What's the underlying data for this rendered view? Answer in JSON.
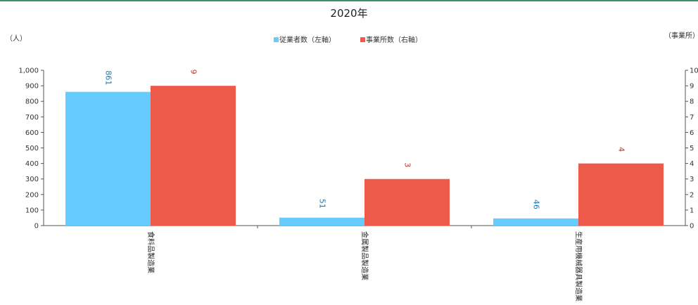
{
  "chart_data": {
    "type": "bar",
    "title": "2020年",
    "categories": [
      "食料品製造業",
      "金属製品製造業",
      "生産用機械器具製造業"
    ],
    "series": [
      {
        "name": "従業者数（左軸）",
        "values": [
          861,
          51,
          46
        ],
        "color": "#66CCFF",
        "label_color": "#1f78b4",
        "axis": "left"
      },
      {
        "name": "事業所数（右軸）",
        "values": [
          9,
          3,
          4
        ],
        "color": "#EE5A4A",
        "label_color": "#c0392b",
        "axis": "right"
      }
    ],
    "y_left": {
      "unit_label": "（人）",
      "ylim": [
        0,
        1000
      ],
      "ticks": [
        "0",
        "100",
        "200",
        "300",
        "400",
        "500",
        "600",
        "700",
        "800",
        "900",
        "1,000"
      ]
    },
    "y_right": {
      "unit_label": "（事業所）",
      "ylim": [
        0,
        10
      ],
      "ticks": [
        "0",
        "1",
        "2",
        "3",
        "4",
        "5",
        "6",
        "7",
        "8",
        "9",
        "10"
      ]
    },
    "legend_position": "top-center",
    "grid": false
  }
}
